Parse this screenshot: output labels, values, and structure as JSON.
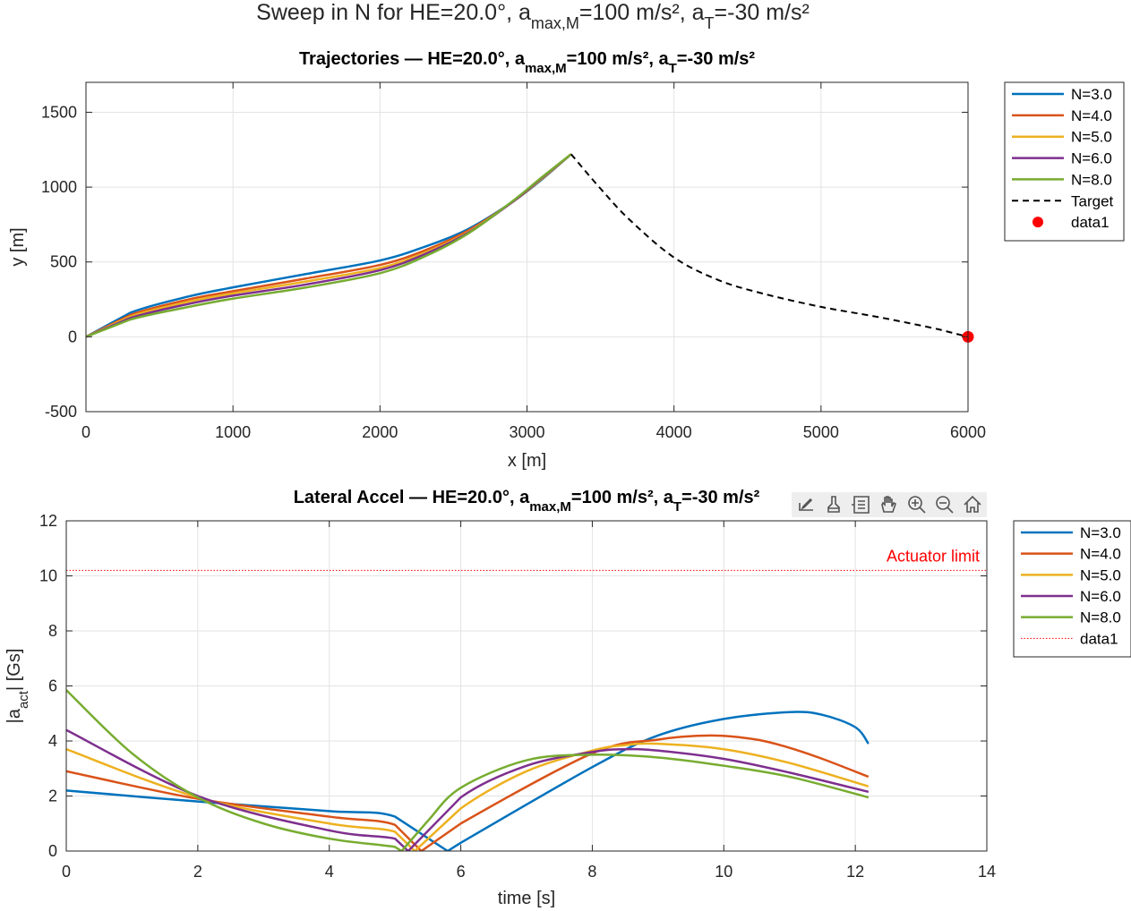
{
  "figure": {
    "supertitle_parts": [
      "Sweep in N for HE=20.0°, a",
      "max,M",
      "=100 m/s², a",
      "T",
      "=-30 m/s²"
    ]
  },
  "toolbar": {
    "icons": [
      "export-icon",
      "brush-icon",
      "datatip-icon",
      "pan-icon",
      "zoom-in-icon",
      "zoom-out-icon",
      "home-icon"
    ]
  },
  "chart_data": [
    {
      "type": "line",
      "title_parts": [
        "Trajectories — HE=20.0°, a",
        "max,M",
        "=100 m/s², a",
        "T",
        "=-30 m/s²"
      ],
      "xlabel": "x [m]",
      "ylabel": "y [m]",
      "xlim": [
        0,
        6000
      ],
      "ylim": [
        -500,
        1700
      ],
      "xticks": [
        0,
        1000,
        2000,
        3000,
        4000,
        5000,
        6000
      ],
      "yticks": [
        -500,
        0,
        500,
        1000,
        1500
      ],
      "grid": true,
      "legend_position": "outside-right-top",
      "series": [
        {
          "name": "N=3.0",
          "color": "#0072BD",
          "x": [
            0,
            300,
            700,
            1000,
            1500,
            2000,
            2300,
            2600,
            2900,
            3100,
            3300
          ],
          "y": [
            0,
            160,
            270,
            330,
            420,
            510,
            600,
            720,
            900,
            1050,
            1220
          ]
        },
        {
          "name": "N=4.0",
          "color": "#D95319",
          "x": [
            0,
            300,
            700,
            1000,
            1500,
            2000,
            2300,
            2600,
            2900,
            3100,
            3300
          ],
          "y": [
            0,
            145,
            250,
            305,
            390,
            480,
            575,
            710,
            900,
            1055,
            1220
          ]
        },
        {
          "name": "N=5.0",
          "color": "#EDB120",
          "x": [
            0,
            300,
            700,
            1000,
            1500,
            2000,
            2300,
            2600,
            2900,
            3100,
            3300
          ],
          "y": [
            0,
            135,
            235,
            290,
            370,
            460,
            560,
            700,
            900,
            1055,
            1220
          ]
        },
        {
          "name": "N=6.0",
          "color": "#7E2F8E",
          "x": [
            0,
            300,
            700,
            1000,
            1500,
            2000,
            2300,
            2600,
            2900,
            3100,
            3300
          ],
          "y": [
            0,
            125,
            220,
            275,
            350,
            445,
            550,
            695,
            900,
            1060,
            1220
          ]
        },
        {
          "name": "N=8.0",
          "color": "#77AC30",
          "x": [
            0,
            300,
            700,
            1000,
            1500,
            2000,
            2300,
            2600,
            2900,
            3100,
            3300
          ],
          "y": [
            0,
            115,
            200,
            255,
            330,
            425,
            535,
            690,
            905,
            1065,
            1220
          ]
        },
        {
          "name": "Target",
          "color": "#000000",
          "dash": true,
          "x": [
            3300,
            3500,
            3700,
            4000,
            4300,
            4600,
            5000,
            5400,
            5800,
            6000
          ],
          "y": [
            1220,
            990,
            780,
            530,
            380,
            290,
            200,
            130,
            50,
            0
          ]
        },
        {
          "name": "data1",
          "color": "#FF0000",
          "marker": true,
          "x": [
            6000
          ],
          "y": [
            0
          ]
        }
      ]
    },
    {
      "type": "line",
      "title_parts": [
        "Lateral Accel — HE=20.0°, a",
        "max,M",
        "=100 m/s², a",
        "T",
        "=-30 m/s²"
      ],
      "xlabel": "time [s]",
      "ylabel_parts": [
        "|a",
        "act",
        "| [Gs]"
      ],
      "xlim": [
        0,
        14
      ],
      "ylim": [
        0,
        12
      ],
      "xticks": [
        0,
        2,
        4,
        6,
        8,
        10,
        12,
        14
      ],
      "yticks": [
        0,
        2,
        4,
        6,
        8,
        10,
        12
      ],
      "grid": true,
      "legend_position": "outside-right-top",
      "annotation": {
        "text": "Actuator limit",
        "color": "#FF0000"
      },
      "series": [
        {
          "name": "N=3.0",
          "color": "#0072BD",
          "x": [
            0,
            2,
            4,
            5,
            5.8,
            6,
            8,
            9,
            10,
            11,
            11.5,
            12,
            12.2
          ],
          "y": [
            2.2,
            1.8,
            1.45,
            1.25,
            0,
            0.3,
            3.05,
            4.2,
            4.8,
            5.05,
            4.95,
            4.5,
            3.9
          ]
        },
        {
          "name": "N=4.0",
          "color": "#D95319",
          "x": [
            0,
            2,
            4,
            5,
            5.4,
            6,
            8,
            9,
            9.8,
            10.5,
            11,
            11.5,
            12.2
          ],
          "y": [
            2.9,
            1.9,
            1.25,
            0.95,
            0,
            1.0,
            3.55,
            4.05,
            4.2,
            4.05,
            3.75,
            3.35,
            2.7
          ]
        },
        {
          "name": "N=5.0",
          "color": "#EDB120",
          "x": [
            0,
            2,
            4,
            5,
            5.3,
            6,
            7,
            8,
            8.5,
            9,
            10,
            11,
            12.2
          ],
          "y": [
            3.7,
            1.95,
            1.0,
            0.7,
            0,
            1.55,
            2.9,
            3.65,
            3.85,
            3.9,
            3.7,
            3.2,
            2.35
          ]
        },
        {
          "name": "N=6.0",
          "color": "#7E2F8E",
          "x": [
            0,
            2,
            4,
            5,
            5.2,
            6,
            7,
            8,
            8.5,
            9,
            10,
            11,
            12.2
          ],
          "y": [
            4.4,
            2.0,
            0.75,
            0.45,
            0,
            1.95,
            3.1,
            3.6,
            3.7,
            3.65,
            3.35,
            2.85,
            2.15
          ]
        },
        {
          "name": "N=8.0",
          "color": "#77AC30",
          "x": [
            0,
            1,
            2,
            3,
            4,
            5,
            5.1,
            5.5,
            6,
            7,
            8,
            9,
            10,
            11,
            12.2
          ],
          "y": [
            5.85,
            3.55,
            1.95,
            1.0,
            0.45,
            0.15,
            0,
            1.1,
            2.3,
            3.3,
            3.5,
            3.4,
            3.1,
            2.7,
            1.95
          ]
        },
        {
          "name": "data1",
          "color": "#FF0000",
          "dotted": true,
          "x": [
            0,
            14
          ],
          "y": [
            10.2,
            10.2
          ]
        }
      ]
    }
  ]
}
